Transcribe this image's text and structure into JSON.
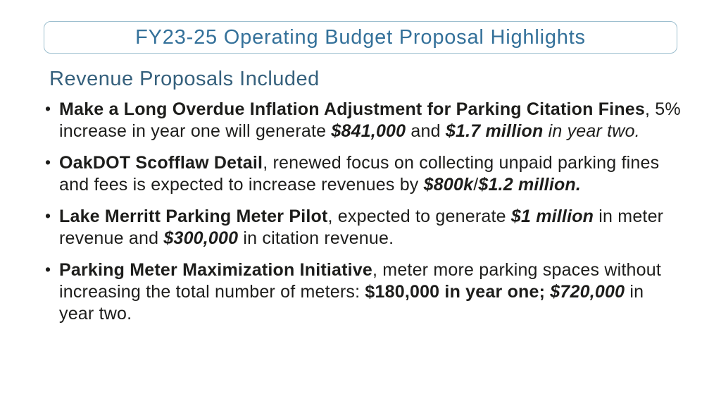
{
  "slide": {
    "title": "FY23-25 Operating Budget Proposal Highlights",
    "subtitle": "Revenue Proposals Included",
    "colors": {
      "background": "#ffffff",
      "title-color": "#34719a",
      "subtitle-color": "#35607c",
      "body-color": "#1d1d1b",
      "box-border": "#9dbfcf"
    },
    "bullets": [
      {
        "segments": [
          {
            "style": "bold",
            "text": "Make a Long Overdue Inflation Adjustment for Parking Citation Fines"
          },
          {
            "style": "regular",
            "text": ", 5% increase in year one will generate "
          },
          {
            "style": "bolditalic",
            "text": "$841,000"
          },
          {
            "style": "regular",
            "text": " and "
          },
          {
            "style": "bolditalic",
            "text": "$1.7 million"
          },
          {
            "style": "italic",
            "text": " in year two."
          }
        ]
      },
      {
        "segments": [
          {
            "style": "bold",
            "text": "OakDOT Scofflaw Detail"
          },
          {
            "style": "regular",
            "text": ", renewed focus on collecting unpaid parking fines and fees is expected to increase revenues by "
          },
          {
            "style": "bolditalic",
            "text": "$800k"
          },
          {
            "style": "regular",
            "text": "/"
          },
          {
            "style": "bolditalic",
            "text": "$1.2 million."
          }
        ]
      },
      {
        "segments": [
          {
            "style": "bold",
            "text": "Lake Merritt Parking Meter Pilot"
          },
          {
            "style": "regular",
            "text": ", expected to generate "
          },
          {
            "style": "bolditalic",
            "text": "$1 million"
          },
          {
            "style": "regular",
            "text": " in meter revenue and "
          },
          {
            "style": "bolditalic",
            "text": "$300,000"
          },
          {
            "style": "regular",
            "text": " in citation revenue."
          }
        ]
      },
      {
        "segments": [
          {
            "style": "bold",
            "text": "Parking Meter Maximization Initiative"
          },
          {
            "style": "regular",
            "text": ", meter more parking spaces without increasing the total number of meters: "
          },
          {
            "style": "bold",
            "text": "$180,000 in year one; "
          },
          {
            "style": "bolditalic",
            "text": "$720,000"
          },
          {
            "style": "regular",
            "text": " in year two."
          }
        ]
      }
    ]
  }
}
